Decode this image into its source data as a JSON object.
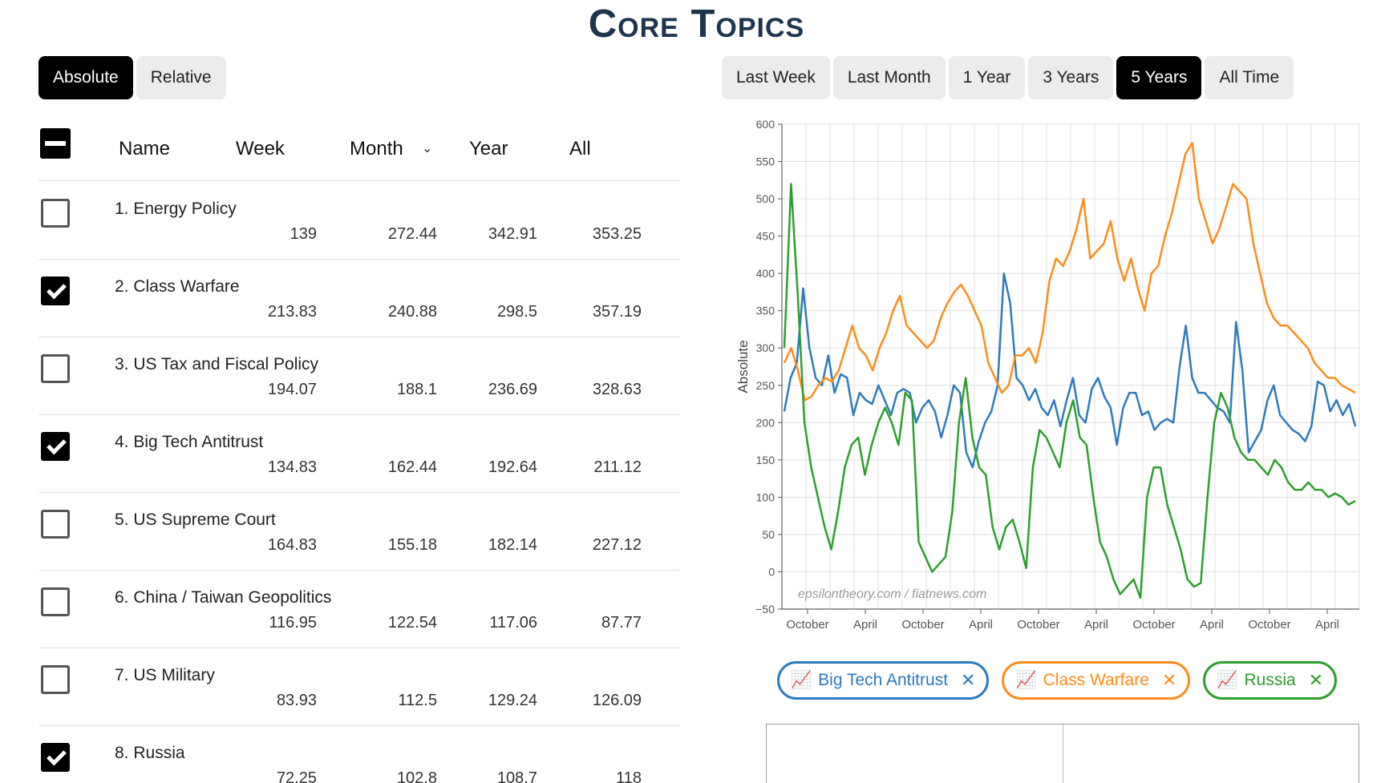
{
  "title": "Core Topics",
  "mode_tabs": [
    {
      "label": "Absolute",
      "active": true
    },
    {
      "label": "Relative",
      "active": false
    }
  ],
  "range_tabs": [
    {
      "label": "Last Week",
      "active": false
    },
    {
      "label": "Last Month",
      "active": false
    },
    {
      "label": "1 Year",
      "active": false
    },
    {
      "label": "3 Years",
      "active": false
    },
    {
      "label": "5 Years",
      "active": true
    },
    {
      "label": "All Time",
      "active": false
    }
  ],
  "table": {
    "headers": {
      "name": "Name",
      "week": "Week",
      "month": "Month",
      "year": "Year",
      "all": "All"
    },
    "sort_icon": "chevron-down-icon",
    "rows": [
      {
        "name": "1. Energy Policy",
        "week": "139",
        "month": "272.44",
        "year": "342.91",
        "all": "353.25",
        "checked": false
      },
      {
        "name": "2. Class Warfare",
        "week": "213.83",
        "month": "240.88",
        "year": "298.5",
        "all": "357.19",
        "checked": true
      },
      {
        "name": "3. US Tax and Fiscal Policy",
        "week": "194.07",
        "month": "188.1",
        "year": "236.69",
        "all": "328.63",
        "checked": false
      },
      {
        "name": "4. Big Tech Antitrust",
        "week": "134.83",
        "month": "162.44",
        "year": "192.64",
        "all": "211.12",
        "checked": true
      },
      {
        "name": "5. US Supreme Court",
        "week": "164.83",
        "month": "155.18",
        "year": "182.14",
        "all": "227.12",
        "checked": false
      },
      {
        "name": "6. China / Taiwan Geopolitics",
        "week": "116.95",
        "month": "122.54",
        "year": "117.06",
        "all": "87.77",
        "checked": false
      },
      {
        "name": "7. US Military",
        "week": "83.93",
        "month": "112.5",
        "year": "129.24",
        "all": "126.09",
        "checked": false
      },
      {
        "name": "8. Russia",
        "week": "72.25",
        "month": "102.8",
        "year": "108.7",
        "all": "118",
        "checked": true
      }
    ]
  },
  "chart_data": {
    "type": "line",
    "ylabel": "Absolute",
    "ylim": [
      -50,
      600
    ],
    "yticks": [
      -50,
      0,
      50,
      100,
      150,
      200,
      250,
      300,
      350,
      400,
      450,
      500,
      550,
      600
    ],
    "xticks": [
      "October",
      "April",
      "October",
      "April",
      "October",
      "April",
      "October",
      "April",
      "October",
      "April"
    ],
    "watermark": "epsilontheory.com / fiatnews.com",
    "grid": true,
    "series": [
      {
        "name": "Big Tech Antitrust",
        "color": "#2d7bbd",
        "values": [
          215,
          260,
          280,
          380,
          300,
          260,
          250,
          290,
          240,
          265,
          260,
          210,
          240,
          230,
          225,
          250,
          230,
          210,
          240,
          245,
          240,
          200,
          220,
          230,
          215,
          180,
          210,
          250,
          240,
          160,
          140,
          175,
          200,
          215,
          250,
          400,
          360,
          260,
          250,
          230,
          245,
          220,
          210,
          230,
          195,
          230,
          260,
          210,
          200,
          245,
          260,
          235,
          220,
          170,
          220,
          240,
          240,
          210,
          215,
          190,
          200,
          205,
          200,
          275,
          330,
          260,
          240,
          240,
          230,
          220,
          215,
          200,
          335,
          270,
          160,
          175,
          190,
          230,
          250,
          210,
          200,
          190,
          185,
          175,
          195,
          255,
          250,
          215,
          230,
          210,
          225,
          195
        ]
      },
      {
        "name": "Class Warfare",
        "color": "#ff8c1a",
        "values": [
          280,
          300,
          270,
          230,
          235,
          250,
          260,
          255,
          270,
          300,
          330,
          300,
          290,
          270,
          300,
          320,
          350,
          370,
          330,
          320,
          310,
          300,
          310,
          340,
          360,
          375,
          385,
          370,
          350,
          330,
          280,
          260,
          240,
          250,
          290,
          290,
          300,
          280,
          320,
          390,
          420,
          410,
          430,
          460,
          500,
          420,
          430,
          440,
          470,
          420,
          390,
          420,
          380,
          350,
          400,
          410,
          450,
          480,
          520,
          560,
          575,
          500,
          470,
          440,
          460,
          490,
          520,
          510,
          500,
          440,
          400,
          360,
          340,
          330,
          330,
          320,
          310,
          300,
          280,
          270,
          260,
          260,
          250,
          245,
          240
        ]
      },
      {
        "name": "Russia",
        "color": "#2ca02c",
        "values": [
          300,
          520,
          370,
          200,
          140,
          100,
          60,
          30,
          80,
          140,
          170,
          180,
          130,
          170,
          200,
          220,
          200,
          170,
          240,
          230,
          40,
          20,
          0,
          10,
          20,
          80,
          200,
          260,
          180,
          140,
          130,
          60,
          30,
          60,
          70,
          40,
          5,
          140,
          190,
          180,
          160,
          140,
          200,
          230,
          180,
          170,
          100,
          40,
          20,
          -10,
          -30,
          -20,
          -10,
          -35,
          100,
          140,
          140,
          90,
          60,
          30,
          -10,
          -20,
          -15,
          100,
          200,
          240,
          220,
          180,
          160,
          150,
          150,
          140,
          130,
          150,
          140,
          120,
          110,
          110,
          120,
          110,
          110,
          100,
          105,
          100,
          90,
          95
        ]
      }
    ]
  },
  "chips": [
    {
      "label": "Big Tech Antitrust",
      "color": "#2d7bbd",
      "icon": "line-chart-icon",
      "close_icon": "close-icon"
    },
    {
      "label": "Class Warfare",
      "color": "#ff8c1a",
      "icon": "line-chart-icon",
      "close_icon": "close-icon"
    },
    {
      "label": "Russia",
      "color": "#2ca02c",
      "icon": "line-chart-icon",
      "close_icon": "close-icon"
    }
  ]
}
